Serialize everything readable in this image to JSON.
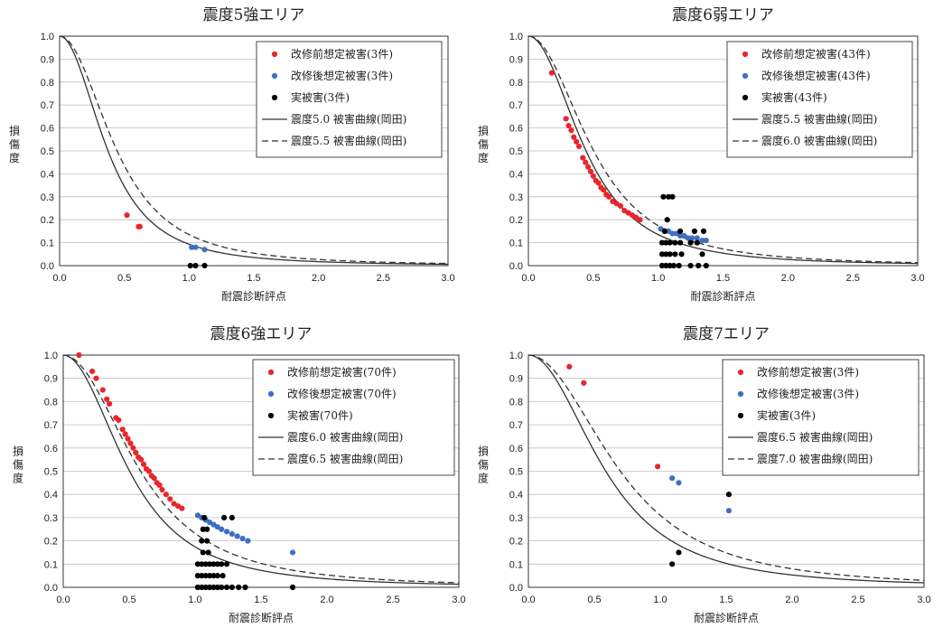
{
  "colors": {
    "before": "#e8262c",
    "after": "#3f6fc2",
    "actual": "#000000",
    "curve": "#333333"
  },
  "chart_data": [
    {
      "type": "scatter",
      "title": "震度5強エリア",
      "xlabel": "耐震診断評点",
      "ylabel": "損傷度",
      "xlim": [
        0,
        3.0
      ],
      "ylim": [
        0,
        1.0
      ],
      "xticks": [
        "0.0",
        "0.5",
        "1.0",
        "1.5",
        "2.0",
        "2.5",
        "3.0"
      ],
      "yticks": [
        "0.0",
        "0.1",
        "0.2",
        "0.3",
        "0.4",
        "0.5",
        "0.6",
        "0.7",
        "0.8",
        "0.9",
        "1.0"
      ],
      "legend": [
        "改修前想定被害(3件)",
        "改修後想定被害(3件)",
        "実被害(3件)",
        "震度5.0 被害曲線(岡田)",
        "震度5.5 被害曲線(岡田)"
      ],
      "curves": [
        {
          "style": "solid",
          "k": 4.8
        },
        {
          "style": "dashed",
          "k": 3.4
        }
      ],
      "series": [
        {
          "name": "before",
          "points": [
            [
              0.52,
              0.22
            ],
            [
              0.61,
              0.17
            ],
            [
              0.62,
              0.17
            ]
          ]
        },
        {
          "name": "after",
          "points": [
            [
              1.02,
              0.08
            ],
            [
              1.05,
              0.08
            ],
            [
              1.12,
              0.07
            ]
          ]
        },
        {
          "name": "actual",
          "points": [
            [
              1.01,
              0.0
            ],
            [
              1.05,
              0.0
            ],
            [
              1.12,
              0.0
            ]
          ]
        }
      ]
    },
    {
      "type": "scatter",
      "title": "震度6弱エリア",
      "xlabel": "耐震診断評点",
      "ylabel": "損傷度",
      "xlim": [
        0,
        3.0
      ],
      "ylim": [
        0,
        1.0
      ],
      "xticks": [
        "0.0",
        "0.5",
        "1.0",
        "1.5",
        "2.0",
        "2.5",
        "3.0"
      ],
      "yticks": [
        "0.0",
        "0.1",
        "0.2",
        "0.3",
        "0.4",
        "0.5",
        "0.6",
        "0.7",
        "0.8",
        "0.9",
        "1.0"
      ],
      "legend": [
        "改修前想定被害(43件)",
        "改修後想定被害(43件)",
        "実被害(43件)",
        "震度5.5 被害曲線(岡田)",
        "震度6.0 被害曲線(岡田)"
      ],
      "curves": [
        {
          "style": "solid",
          "k": 3.4
        },
        {
          "style": "dashed",
          "k": 2.65
        }
      ],
      "series": [
        {
          "name": "before",
          "points": [
            [
              0.18,
              0.84
            ],
            [
              0.29,
              0.64
            ],
            [
              0.31,
              0.61
            ],
            [
              0.33,
              0.59
            ],
            [
              0.35,
              0.56
            ],
            [
              0.37,
              0.54
            ],
            [
              0.39,
              0.52
            ],
            [
              0.42,
              0.47
            ],
            [
              0.44,
              0.45
            ],
            [
              0.46,
              0.43
            ],
            [
              0.48,
              0.41
            ],
            [
              0.5,
              0.39
            ],
            [
              0.52,
              0.37
            ],
            [
              0.54,
              0.36
            ],
            [
              0.56,
              0.34
            ],
            [
              0.58,
              0.33
            ],
            [
              0.6,
              0.31
            ],
            [
              0.62,
              0.3
            ],
            [
              0.65,
              0.28
            ],
            [
              0.68,
              0.27
            ],
            [
              0.71,
              0.26
            ],
            [
              0.74,
              0.24
            ],
            [
              0.77,
              0.23
            ],
            [
              0.8,
              0.22
            ],
            [
              0.83,
              0.21
            ],
            [
              0.86,
              0.2
            ]
          ]
        },
        {
          "name": "after",
          "points": [
            [
              1.02,
              0.16
            ],
            [
              1.05,
              0.15
            ],
            [
              1.08,
              0.15
            ],
            [
              1.11,
              0.14
            ],
            [
              1.14,
              0.14
            ],
            [
              1.17,
              0.13
            ],
            [
              1.2,
              0.13
            ],
            [
              1.23,
              0.12
            ],
            [
              1.26,
              0.12
            ],
            [
              1.3,
              0.12
            ],
            [
              1.34,
              0.11
            ],
            [
              1.37,
              0.11
            ]
          ]
        },
        {
          "name": "actual",
          "points": [
            [
              1.04,
              0.3
            ],
            [
              1.08,
              0.3
            ],
            [
              1.11,
              0.3
            ],
            [
              1.07,
              0.2
            ],
            [
              1.05,
              0.15
            ],
            [
              1.17,
              0.15
            ],
            [
              1.28,
              0.15
            ],
            [
              1.35,
              0.15
            ],
            [
              1.03,
              0.1
            ],
            [
              1.06,
              0.1
            ],
            [
              1.09,
              0.1
            ],
            [
              1.13,
              0.1
            ],
            [
              1.17,
              0.1
            ],
            [
              1.25,
              0.1
            ],
            [
              1.3,
              0.1
            ],
            [
              1.03,
              0.05
            ],
            [
              1.06,
              0.05
            ],
            [
              1.09,
              0.05
            ],
            [
              1.13,
              0.05
            ],
            [
              1.18,
              0.05
            ],
            [
              1.34,
              0.05
            ],
            [
              1.03,
              0.0
            ],
            [
              1.06,
              0.0
            ],
            [
              1.09,
              0.0
            ],
            [
              1.12,
              0.0
            ],
            [
              1.16,
              0.0
            ],
            [
              1.25,
              0.0
            ],
            [
              1.31,
              0.0
            ],
            [
              1.37,
              0.0
            ]
          ]
        }
      ]
    },
    {
      "type": "scatter",
      "title": "震度6強エリア",
      "xlabel": "耐震診断評点",
      "ylabel": "損傷度",
      "xlim": [
        0,
        3.0
      ],
      "ylim": [
        0,
        1.0
      ],
      "xticks": [
        "0.0",
        "0.5",
        "1.0",
        "1.5",
        "2.0",
        "2.5",
        "3.0"
      ],
      "yticks": [
        "0.0",
        "0.1",
        "0.2",
        "0.3",
        "0.4",
        "0.5",
        "0.6",
        "0.7",
        "0.8",
        "0.9",
        "1.0"
      ],
      "legend": [
        "改修前想定被害(70件)",
        "改修後想定被害(70件)",
        "実被害(70件)",
        "震度6.0 被害曲線(岡田)",
        "震度6.5 被害曲線(岡田)"
      ],
      "curves": [
        {
          "style": "solid",
          "k": 2.65
        },
        {
          "style": "dashed",
          "k": 1.95
        }
      ],
      "series": [
        {
          "name": "before",
          "points": [
            [
              0.12,
              1.0
            ],
            [
              0.22,
              0.93
            ],
            [
              0.25,
              0.9
            ],
            [
              0.3,
              0.85
            ],
            [
              0.33,
              0.81
            ],
            [
              0.35,
              0.79
            ],
            [
              0.4,
              0.73
            ],
            [
              0.42,
              0.72
            ],
            [
              0.45,
              0.68
            ],
            [
              0.47,
              0.66
            ],
            [
              0.49,
              0.64
            ],
            [
              0.51,
              0.62
            ],
            [
              0.53,
              0.6
            ],
            [
              0.55,
              0.58
            ],
            [
              0.57,
              0.56
            ],
            [
              0.59,
              0.55
            ],
            [
              0.61,
              0.53
            ],
            [
              0.63,
              0.51
            ],
            [
              0.65,
              0.5
            ],
            [
              0.67,
              0.48
            ],
            [
              0.69,
              0.47
            ],
            [
              0.71,
              0.45
            ],
            [
              0.73,
              0.44
            ],
            [
              0.75,
              0.42
            ],
            [
              0.78,
              0.4
            ],
            [
              0.81,
              0.38
            ],
            [
              0.84,
              0.36
            ],
            [
              0.87,
              0.35
            ],
            [
              0.9,
              0.34
            ]
          ]
        },
        {
          "name": "after",
          "points": [
            [
              1.02,
              0.31
            ],
            [
              1.05,
              0.3
            ],
            [
              1.08,
              0.29
            ],
            [
              1.11,
              0.28
            ],
            [
              1.14,
              0.27
            ],
            [
              1.17,
              0.26
            ],
            [
              1.2,
              0.25
            ],
            [
              1.24,
              0.24
            ],
            [
              1.28,
              0.23
            ],
            [
              1.32,
              0.22
            ],
            [
              1.36,
              0.21
            ],
            [
              1.4,
              0.2
            ],
            [
              1.74,
              0.15
            ]
          ]
        },
        {
          "name": "actual",
          "points": [
            [
              1.07,
              0.3
            ],
            [
              1.22,
              0.3
            ],
            [
              1.28,
              0.3
            ],
            [
              1.06,
              0.25
            ],
            [
              1.09,
              0.25
            ],
            [
              1.05,
              0.2
            ],
            [
              1.09,
              0.2
            ],
            [
              1.06,
              0.15
            ],
            [
              1.1,
              0.15
            ],
            [
              1.02,
              0.1
            ],
            [
              1.05,
              0.1
            ],
            [
              1.08,
              0.1
            ],
            [
              1.11,
              0.1
            ],
            [
              1.14,
              0.1
            ],
            [
              1.17,
              0.1
            ],
            [
              1.2,
              0.1
            ],
            [
              1.24,
              0.1
            ],
            [
              1.02,
              0.05
            ],
            [
              1.05,
              0.05
            ],
            [
              1.08,
              0.05
            ],
            [
              1.11,
              0.05
            ],
            [
              1.14,
              0.05
            ],
            [
              1.17,
              0.05
            ],
            [
              1.21,
              0.05
            ],
            [
              1.02,
              0.0
            ],
            [
              1.05,
              0.0
            ],
            [
              1.08,
              0.0
            ],
            [
              1.11,
              0.0
            ],
            [
              1.14,
              0.0
            ],
            [
              1.17,
              0.0
            ],
            [
              1.2,
              0.0
            ],
            [
              1.24,
              0.0
            ],
            [
              1.28,
              0.0
            ],
            [
              1.33,
              0.0
            ],
            [
              1.38,
              0.0
            ],
            [
              1.74,
              0.0
            ]
          ]
        }
      ]
    },
    {
      "type": "scatter",
      "title": "震度7エリア",
      "xlabel": "耐震診断評点",
      "ylabel": "損傷度",
      "xlim": [
        0,
        3.0
      ],
      "ylim": [
        0,
        1.0
      ],
      "xticks": [
        "0.0",
        "0.5",
        "1.0",
        "1.5",
        "2.0",
        "2.5",
        "3.0"
      ],
      "yticks": [
        "0.0",
        "0.1",
        "0.2",
        "0.3",
        "0.4",
        "0.5",
        "0.6",
        "0.7",
        "0.8",
        "0.9",
        "1.0"
      ],
      "legend": [
        "改修前想定被害(3件)",
        "改修後想定被害(3件)",
        "実被害(3件)",
        "震度6.5 被害曲線(岡田)",
        "震度7.0 被害曲線(岡田)"
      ],
      "curves": [
        {
          "style": "solid",
          "k": 1.95
        },
        {
          "style": "dashed",
          "k": 1.38
        }
      ],
      "series": [
        {
          "name": "before",
          "points": [
            [
              0.31,
              0.95
            ],
            [
              0.42,
              0.88
            ],
            [
              0.98,
              0.52
            ]
          ]
        },
        {
          "name": "after",
          "points": [
            [
              1.09,
              0.47
            ],
            [
              1.14,
              0.45
            ],
            [
              1.52,
              0.33
            ]
          ]
        },
        {
          "name": "actual",
          "points": [
            [
              1.52,
              0.4
            ],
            [
              1.14,
              0.15
            ],
            [
              1.09,
              0.1
            ]
          ]
        }
      ]
    }
  ]
}
